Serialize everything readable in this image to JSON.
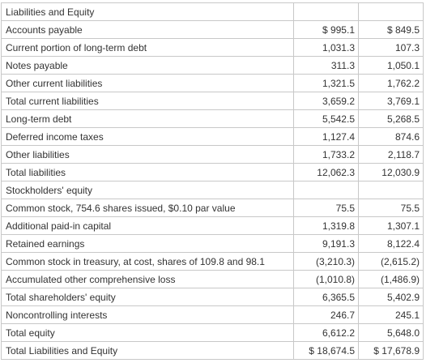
{
  "rows": [
    {
      "label": "Liabilities and Equity",
      "v1": "",
      "v2": ""
    },
    {
      "label": "Accounts payable",
      "v1": "$ 995.1",
      "v2": "$ 849.5"
    },
    {
      "label": "Current portion of long-term debt",
      "v1": "1,031.3",
      "v2": "107.3"
    },
    {
      "label": "Notes payable",
      "v1": "311.3",
      "v2": "1,050.1"
    },
    {
      "label": "Other current liabilities",
      "v1": "1,321.5",
      "v2": "1,762.2"
    },
    {
      "label": "Total current liabilities",
      "v1": "3,659.2",
      "v2": "3,769.1"
    },
    {
      "label": "Long-term debt",
      "v1": "5,542.5",
      "v2": "5,268.5"
    },
    {
      "label": "Deferred income taxes",
      "v1": "1,127.4",
      "v2": "874.6"
    },
    {
      "label": "Other liabilities",
      "v1": "1,733.2",
      "v2": "2,118.7"
    },
    {
      "label": "Total liabilities",
      "v1": "12,062.3",
      "v2": "12,030.9"
    },
    {
      "label": "Stockholders' equity",
      "v1": "",
      "v2": ""
    },
    {
      "label": "Common stock, 754.6 shares issued, $0.10 par value",
      "v1": "75.5",
      "v2": "75.5"
    },
    {
      "label": "Additional paid-in capital",
      "v1": "1,319.8",
      "v2": "1,307.1"
    },
    {
      "label": "Retained earnings",
      "v1": "9,191.3",
      "v2": "8,122.4"
    },
    {
      "label": "Common stock in treasury, at cost, shares of 109.8 and 98.1",
      "v1": "(3,210.3)",
      "v2": "(2,615.2)"
    },
    {
      "label": "Accumulated other comprehensive loss",
      "v1": "(1,010.8)",
      "v2": "(1,486.9)"
    },
    {
      "label": "Total shareholders' equity",
      "v1": "6,365.5",
      "v2": "5,402.9"
    },
    {
      "label": "Noncontrolling interests",
      "v1": "246.7",
      "v2": "245.1"
    },
    {
      "label": "Total equity",
      "v1": "6,612.2",
      "v2": "5,648.0"
    },
    {
      "label": "Total Liabilities and Equity",
      "v1": "$ 18,674.5",
      "v2": "$ 17,678.9"
    }
  ]
}
